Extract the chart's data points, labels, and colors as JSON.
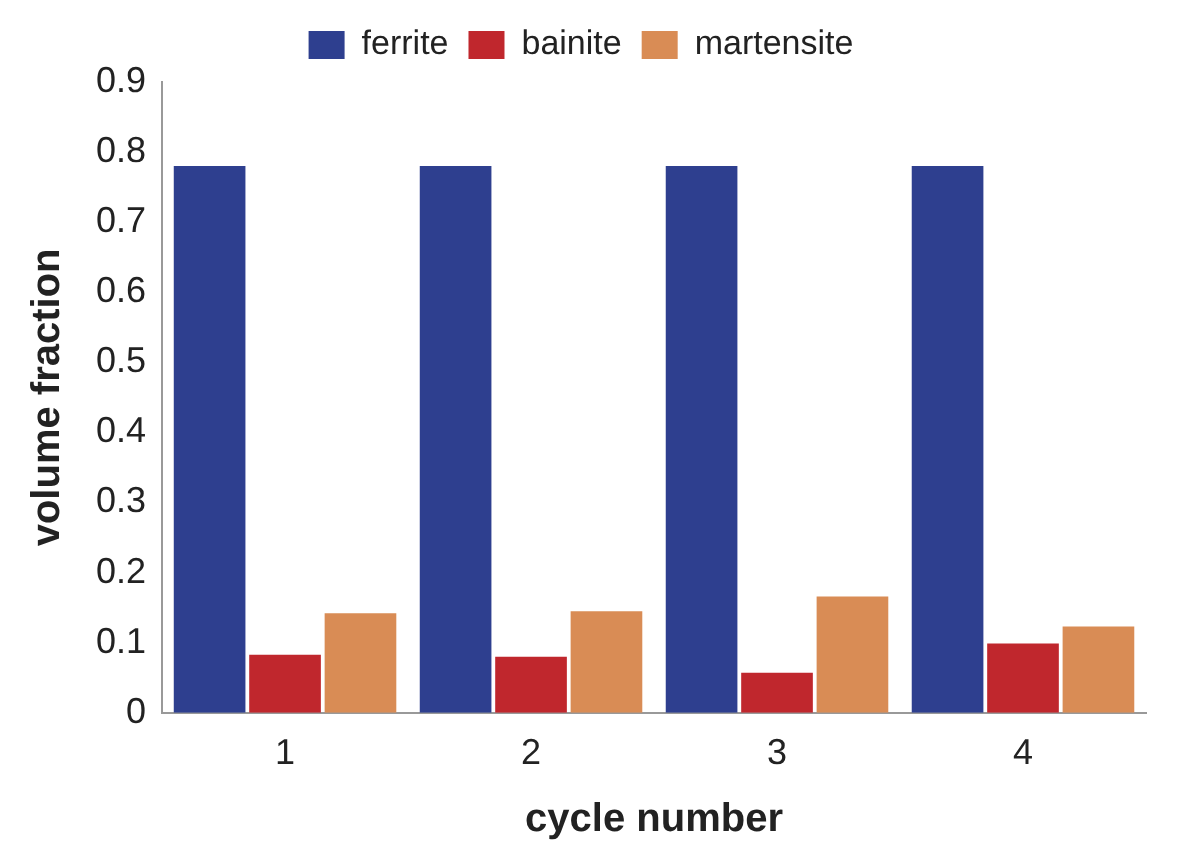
{
  "chart_data": {
    "type": "bar",
    "xlabel": "cycle number",
    "ylabel": "volume fraction",
    "categories": [
      "1",
      "2",
      "3",
      "4"
    ],
    "series": [
      {
        "name": "ferrite",
        "color": "#2e3f8f",
        "values": [
          0.78,
          0.78,
          0.78,
          0.78
        ]
      },
      {
        "name": "bainite",
        "color": "#c0272d",
        "values": [
          0.083,
          0.08,
          0.057,
          0.099
        ]
      },
      {
        "name": "martensite",
        "color": "#d98c55",
        "values": [
          0.142,
          0.145,
          0.166,
          0.123
        ]
      }
    ],
    "ylim": [
      0,
      0.9
    ],
    "yticks": [
      0,
      0.1,
      0.2,
      0.3,
      0.4,
      0.5,
      0.6,
      0.7,
      0.8,
      0.9
    ],
    "grid": false,
    "legend": "top"
  }
}
